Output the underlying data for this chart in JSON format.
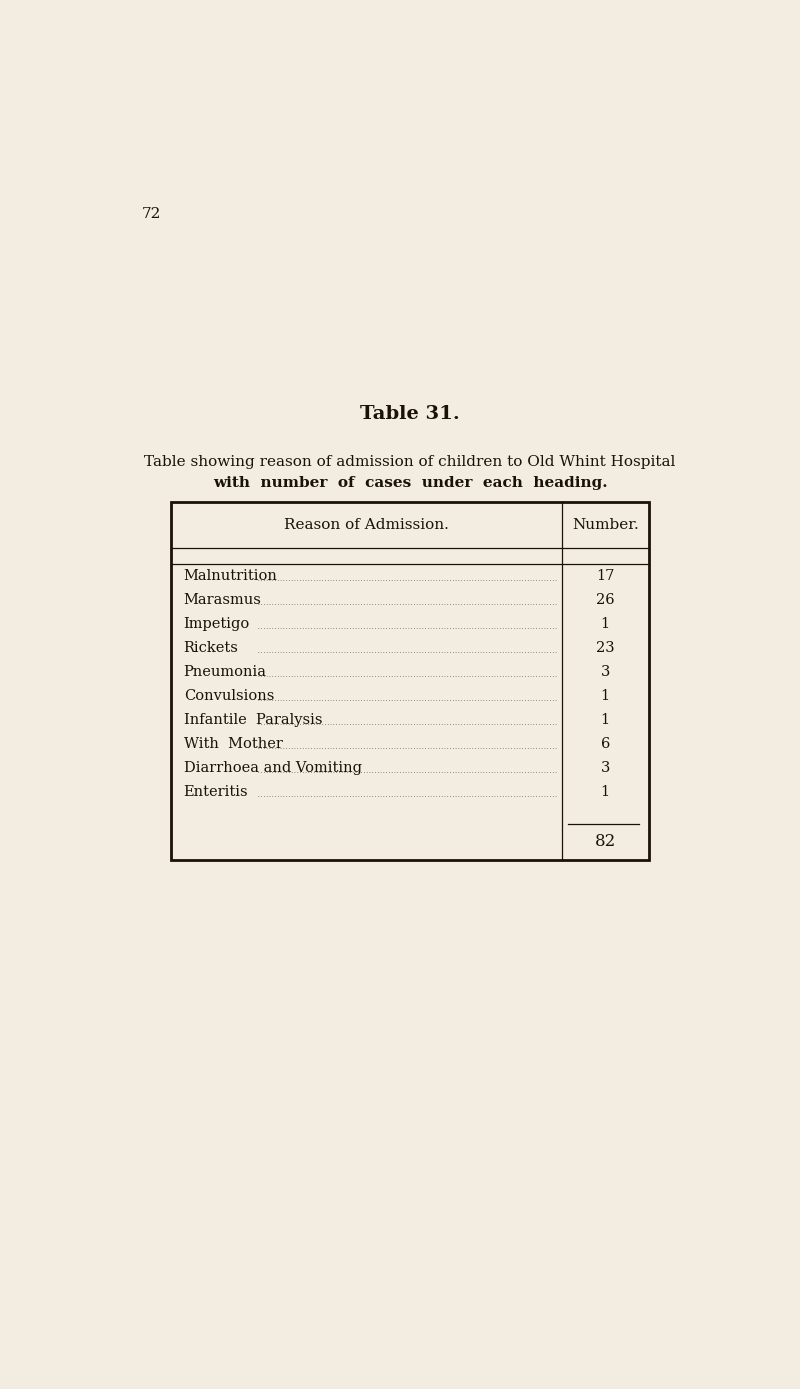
{
  "page_number": "72",
  "title": "Table 31.",
  "subtitle_line1": "Table showing reason of admission of children to Old Whint Hospital",
  "subtitle_line2": "with  number  of  cases  under  each  heading.",
  "col_header_left": "Reason of Admission.",
  "col_header_right": "Number.",
  "rows": [
    [
      "Malnutrition",
      "17"
    ],
    [
      "Marasmus",
      "26"
    ],
    [
      "Impetigo",
      "1"
    ],
    [
      "Rickets",
      "23"
    ],
    [
      "Pneumonia",
      "3"
    ],
    [
      "Convulsions",
      "1"
    ],
    [
      "Infantile  Paralysis",
      "1"
    ],
    [
      "With  Mother",
      "6"
    ],
    [
      "Diarrhoea and Vomiting",
      "3"
    ],
    [
      "Enteritis",
      "1"
    ]
  ],
  "total_label": "82",
  "bg_color": "#f2ede0",
  "text_color": "#1a1208",
  "font_size_title": 14,
  "font_size_subtitle": 11,
  "font_size_header": 11,
  "font_size_row": 10.5,
  "font_size_total": 12,
  "font_size_page": 11
}
